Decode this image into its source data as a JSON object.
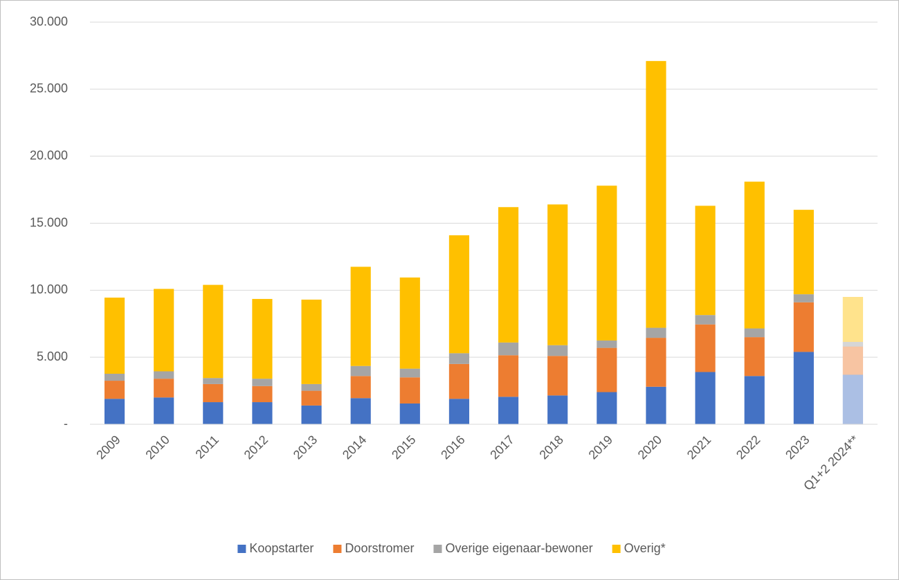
{
  "chart_data": {
    "type": "stacked-bar",
    "categories": [
      "2009",
      "2010",
      "2011",
      "2012",
      "2013",
      "2014",
      "2015",
      "2016",
      "2017",
      "2018",
      "2019",
      "2020",
      "2021",
      "2022",
      "2023",
      "Q1+2 2024**"
    ],
    "series": [
      {
        "name": "Koopstarter",
        "color": "#4472c4",
        "values": [
          1900,
          2000,
          1650,
          1650,
          1400,
          1950,
          1550,
          1900,
          2050,
          2150,
          2400,
          2800,
          3900,
          3600,
          5400,
          3700
        ]
      },
      {
        "name": "Doorstromer",
        "color": "#ed7d31",
        "values": [
          1350,
          1400,
          1350,
          1200,
          1100,
          1650,
          1950,
          2600,
          3100,
          2950,
          3300,
          3650,
          3550,
          2900,
          3700,
          2100
        ]
      },
      {
        "name": "Overige eigenaar-bewoner",
        "color": "#a5a5a5",
        "values": [
          520,
          550,
          450,
          550,
          500,
          750,
          650,
          800,
          950,
          800,
          550,
          750,
          700,
          650,
          600,
          350
        ]
      },
      {
        "name": "Overig*",
        "color": "#ffc000",
        "values": [
          5680,
          6150,
          6950,
          5950,
          6300,
          7400,
          6800,
          8800,
          10100,
          10500,
          11550,
          19900,
          8150,
          10950,
          6300,
          3350
        ]
      }
    ],
    "ylim": [
      0,
      30000
    ],
    "yticks": [
      {
        "value": 0,
        "label": "-"
      },
      {
        "value": 5000,
        "label": "5.000"
      },
      {
        "value": 10000,
        "label": "10.000"
      },
      {
        "value": 15000,
        "label": "15.000"
      },
      {
        "value": 20000,
        "label": "20.000"
      },
      {
        "value": 25000,
        "label": "25.000"
      },
      {
        "value": 30000,
        "label": "30.000"
      }
    ],
    "grid": true,
    "hatched_index": 15,
    "legend": "bottom"
  }
}
